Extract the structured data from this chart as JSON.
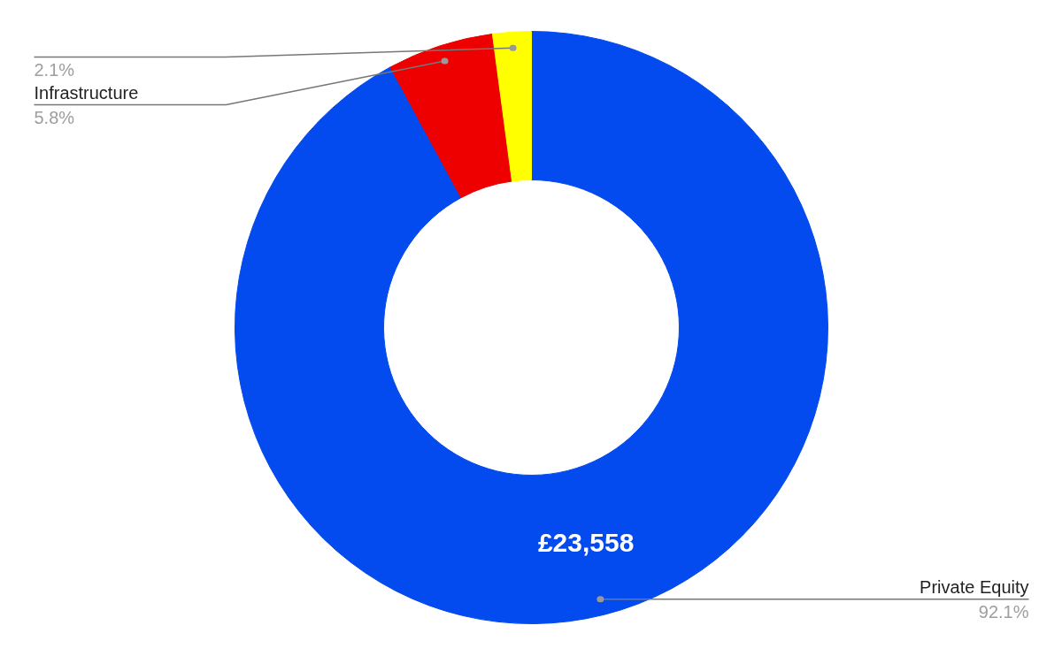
{
  "chart_data": {
    "type": "donut",
    "categories": [
      "Private Equity",
      "Infrastructure",
      null
    ],
    "values": [
      92.1,
      5.8,
      2.1
    ],
    "value_labels": [
      "92.1%",
      "5.8%",
      "2.1%"
    ],
    "colors": [
      "#034aef",
      "#ee0000",
      "#ffff00"
    ],
    "annotations": [
      "£23,558"
    ]
  }
}
